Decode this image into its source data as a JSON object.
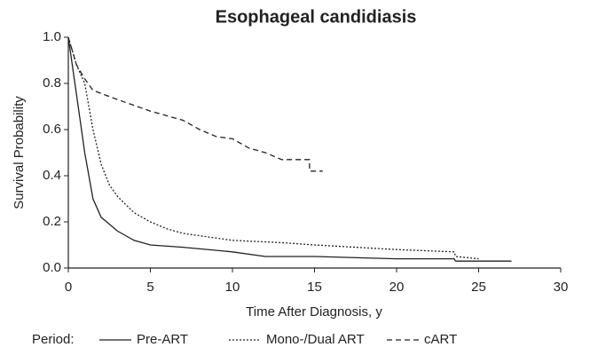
{
  "chart_data": {
    "type": "line",
    "title": "Esophageal candidiasis",
    "xlabel": "Time After Diagnosis, y",
    "ylabel": "Survival Probability",
    "legend_title": "Period:",
    "xlim": [
      0,
      30
    ],
    "ylim": [
      0,
      1
    ],
    "xticks": [
      0,
      5,
      10,
      15,
      20,
      25,
      30
    ],
    "yticks": [
      {
        "value": 0,
        "label": "0.0"
      },
      0.2,
      0.4,
      0.6,
      0.8,
      {
        "value": 1,
        "label": "1.0"
      }
    ],
    "series": [
      {
        "name": "Pre-ART",
        "color": "#222222",
        "dash": "solid",
        "x": [
          0,
          0.5,
          1,
          1.5,
          2,
          2.5,
          3,
          4,
          5,
          7,
          10,
          12,
          15,
          20,
          23.5,
          23.6,
          27
        ],
        "values": [
          1.0,
          0.75,
          0.5,
          0.3,
          0.22,
          0.19,
          0.16,
          0.12,
          0.1,
          0.09,
          0.07,
          0.05,
          0.05,
          0.04,
          0.04,
          0.03,
          0.03
        ]
      },
      {
        "name": "Mono-/Dual ART",
        "color": "#222222",
        "dash": "dotted",
        "x": [
          0,
          0.5,
          1,
          1.5,
          2,
          2.5,
          3,
          4,
          5,
          6,
          7,
          10,
          13,
          15,
          20,
          23.5,
          23.6,
          25
        ],
        "values": [
          1.0,
          0.88,
          0.8,
          0.6,
          0.45,
          0.36,
          0.31,
          0.24,
          0.2,
          0.17,
          0.15,
          0.12,
          0.11,
          0.1,
          0.08,
          0.07,
          0.05,
          0.04
        ]
      },
      {
        "name": "cART",
        "color": "#222222",
        "dash": "dashed",
        "x": [
          0,
          0.5,
          1,
          1.5,
          3,
          5,
          7,
          8,
          9,
          10,
          11,
          12,
          13,
          14.7,
          14.7,
          15.5
        ],
        "values": [
          1.0,
          0.88,
          0.82,
          0.77,
          0.73,
          0.68,
          0.64,
          0.6,
          0.57,
          0.56,
          0.52,
          0.5,
          0.47,
          0.47,
          0.42,
          0.42
        ]
      }
    ]
  }
}
